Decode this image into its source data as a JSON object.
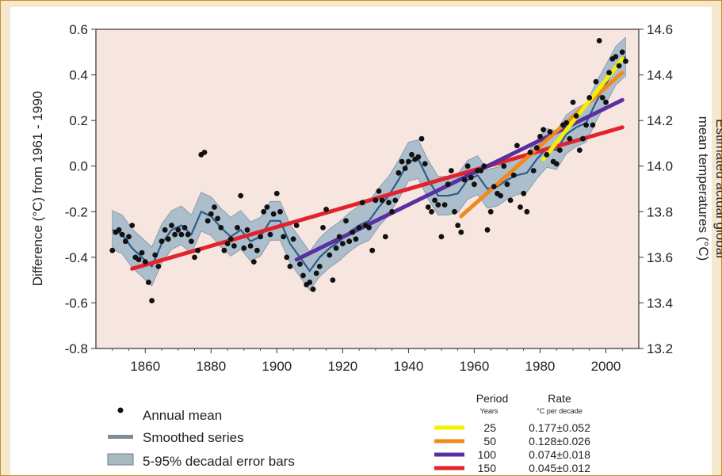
{
  "chart_data": {
    "type": "line",
    "x_range": [
      1845,
      2010
    ],
    "x_ticks": [
      1860,
      1880,
      1900,
      1920,
      1940,
      1960,
      1980,
      2000
    ],
    "y_left": {
      "label": "Difference (°C) from 1961 - 1990",
      "range": [
        -0.8,
        0.6
      ],
      "ticks": [
        -0.8,
        -0.6,
        -0.4,
        -0.2,
        0.0,
        0.2,
        0.4,
        0.6
      ],
      "tick_labels": [
        "-0.8",
        "-0.6",
        "-0.4",
        "-0.2",
        "0.0",
        "0.2",
        "0.4",
        "0.6"
      ]
    },
    "y_right": {
      "label_line1": "Estimated actual global",
      "label_line2": "mean temperatures (°C)",
      "range": [
        13.2,
        14.6
      ],
      "ticks": [
        13.2,
        13.4,
        13.6,
        13.8,
        14.0,
        14.2,
        14.4,
        14.6
      ],
      "tick_labels": [
        "13.2",
        "13.4",
        "13.6",
        "13.8",
        "14.0",
        "14.2",
        "14.4",
        "14.6"
      ]
    },
    "annual_mean": [
      [
        1850,
        -0.37
      ],
      [
        1851,
        -0.29
      ],
      [
        1852,
        -0.28
      ],
      [
        1853,
        -0.3
      ],
      [
        1854,
        -0.33
      ],
      [
        1855,
        -0.31
      ],
      [
        1856,
        -0.26
      ],
      [
        1857,
        -0.4
      ],
      [
        1858,
        -0.41
      ],
      [
        1859,
        -0.38
      ],
      [
        1860,
        -0.42
      ],
      [
        1861,
        -0.51
      ],
      [
        1862,
        -0.59
      ],
      [
        1863,
        -0.39
      ],
      [
        1864,
        -0.44
      ],
      [
        1865,
        -0.33
      ],
      [
        1866,
        -0.28
      ],
      [
        1867,
        -0.32
      ],
      [
        1868,
        -0.26
      ],
      [
        1869,
        -0.3
      ],
      [
        1870,
        -0.28
      ],
      [
        1871,
        -0.3
      ],
      [
        1872,
        -0.27
      ],
      [
        1873,
        -0.3
      ],
      [
        1874,
        -0.33
      ],
      [
        1875,
        -0.4
      ],
      [
        1876,
        -0.37
      ],
      [
        1877,
        0.05
      ],
      [
        1878,
        0.06
      ],
      [
        1879,
        -0.24
      ],
      [
        1880,
        -0.21
      ],
      [
        1881,
        -0.18
      ],
      [
        1882,
        -0.23
      ],
      [
        1883,
        -0.27
      ],
      [
        1884,
        -0.37
      ],
      [
        1885,
        -0.34
      ],
      [
        1886,
        -0.32
      ],
      [
        1887,
        -0.35
      ],
      [
        1888,
        -0.27
      ],
      [
        1889,
        -0.13
      ],
      [
        1890,
        -0.36
      ],
      [
        1891,
        -0.28
      ],
      [
        1892,
        -0.35
      ],
      [
        1893,
        -0.42
      ],
      [
        1894,
        -0.37
      ],
      [
        1895,
        -0.31
      ],
      [
        1896,
        -0.2
      ],
      [
        1897,
        -0.18
      ],
      [
        1898,
        -0.3
      ],
      [
        1899,
        -0.21
      ],
      [
        1900,
        -0.12
      ],
      [
        1901,
        -0.2
      ],
      [
        1902,
        -0.31
      ],
      [
        1903,
        -0.4
      ],
      [
        1904,
        -0.44
      ],
      [
        1905,
        -0.32
      ],
      [
        1906,
        -0.26
      ],
      [
        1907,
        -0.43
      ],
      [
        1908,
        -0.48
      ],
      [
        1909,
        -0.52
      ],
      [
        1910,
        -0.51
      ],
      [
        1911,
        -0.54
      ],
      [
        1912,
        -0.47
      ],
      [
        1913,
        -0.44
      ],
      [
        1914,
        -0.27
      ],
      [
        1915,
        -0.19
      ],
      [
        1916,
        -0.39
      ],
      [
        1917,
        -0.5
      ],
      [
        1918,
        -0.36
      ],
      [
        1919,
        -0.31
      ],
      [
        1920,
        -0.34
      ],
      [
        1921,
        -0.24
      ],
      [
        1922,
        -0.33
      ],
      [
        1923,
        -0.29
      ],
      [
        1924,
        -0.32
      ],
      [
        1925,
        -0.27
      ],
      [
        1926,
        -0.16
      ],
      [
        1927,
        -0.26
      ],
      [
        1928,
        -0.27
      ],
      [
        1929,
        -0.37
      ],
      [
        1930,
        -0.15
      ],
      [
        1931,
        -0.11
      ],
      [
        1932,
        -0.15
      ],
      [
        1933,
        -0.31
      ],
      [
        1934,
        -0.16
      ],
      [
        1935,
        -0.2
      ],
      [
        1936,
        -0.15
      ],
      [
        1937,
        -0.03
      ],
      [
        1938,
        0.02
      ],
      [
        1939,
        -0.01
      ],
      [
        1940,
        0.02
      ],
      [
        1941,
        0.05
      ],
      [
        1942,
        0.03
      ],
      [
        1943,
        0.04
      ],
      [
        1944,
        0.12
      ],
      [
        1945,
        0.01
      ],
      [
        1946,
        -0.18
      ],
      [
        1947,
        -0.2
      ],
      [
        1948,
        -0.15
      ],
      [
        1949,
        -0.17
      ],
      [
        1950,
        -0.31
      ],
      [
        1951,
        -0.17
      ],
      [
        1952,
        -0.08
      ],
      [
        1953,
        -0.02
      ],
      [
        1954,
        -0.2
      ],
      [
        1955,
        -0.26
      ],
      [
        1956,
        -0.29
      ],
      [
        1957,
        -0.06
      ],
      [
        1958,
        0.0
      ],
      [
        1959,
        -0.05
      ],
      [
        1960,
        -0.08
      ],
      [
        1961,
        -0.02
      ],
      [
        1962,
        -0.02
      ],
      [
        1963,
        0.0
      ],
      [
        1964,
        -0.28
      ],
      [
        1965,
        -0.2
      ],
      [
        1966,
        -0.09
      ],
      [
        1967,
        -0.12
      ],
      [
        1968,
        -0.13
      ],
      [
        1969,
        0.0
      ],
      [
        1970,
        -0.08
      ],
      [
        1971,
        -0.15
      ],
      [
        1972,
        -0.04
      ],
      [
        1973,
        0.09
      ],
      [
        1974,
        -0.18
      ],
      [
        1975,
        -0.12
      ],
      [
        1976,
        -0.2
      ],
      [
        1977,
        0.06
      ],
      [
        1978,
        -0.02
      ],
      [
        1979,
        0.08
      ],
      [
        1980,
        0.13
      ],
      [
        1981,
        0.16
      ],
      [
        1982,
        0.05
      ],
      [
        1983,
        0.15
      ],
      [
        1984,
        0.02
      ],
      [
        1985,
        0.01
      ],
      [
        1986,
        0.07
      ],
      [
        1987,
        0.18
      ],
      [
        1988,
        0.19
      ],
      [
        1989,
        0.12
      ],
      [
        1990,
        0.28
      ],
      [
        1991,
        0.22
      ],
      [
        1992,
        0.07
      ],
      [
        1993,
        0.12
      ],
      [
        1994,
        0.18
      ],
      [
        1995,
        0.3
      ],
      [
        1996,
        0.18
      ],
      [
        1997,
        0.37
      ],
      [
        1998,
        0.55
      ],
      [
        1999,
        0.3
      ],
      [
        2000,
        0.28
      ],
      [
        2001,
        0.41
      ],
      [
        2002,
        0.47
      ],
      [
        2003,
        0.48
      ],
      [
        2004,
        0.44
      ],
      [
        2005,
        0.5
      ],
      [
        2006,
        0.46
      ]
    ],
    "smoothed": [
      [
        1850,
        -0.28
      ],
      [
        1853,
        -0.3
      ],
      [
        1856,
        -0.36
      ],
      [
        1859,
        -0.4
      ],
      [
        1862,
        -0.44
      ],
      [
        1865,
        -0.34
      ],
      [
        1868,
        -0.28
      ],
      [
        1871,
        -0.26
      ],
      [
        1874,
        -0.3
      ],
      [
        1877,
        -0.2
      ],
      [
        1880,
        -0.22
      ],
      [
        1883,
        -0.27
      ],
      [
        1886,
        -0.31
      ],
      [
        1889,
        -0.28
      ],
      [
        1892,
        -0.33
      ],
      [
        1895,
        -0.31
      ],
      [
        1898,
        -0.24
      ],
      [
        1901,
        -0.24
      ],
      [
        1904,
        -0.34
      ],
      [
        1907,
        -0.4
      ],
      [
        1910,
        -0.46
      ],
      [
        1913,
        -0.4
      ],
      [
        1916,
        -0.36
      ],
      [
        1919,
        -0.33
      ],
      [
        1922,
        -0.29
      ],
      [
        1925,
        -0.26
      ],
      [
        1928,
        -0.24
      ],
      [
        1931,
        -0.18
      ],
      [
        1934,
        -0.13
      ],
      [
        1937,
        -0.06
      ],
      [
        1940,
        0.02
      ],
      [
        1943,
        0.03
      ],
      [
        1946,
        -0.06
      ],
      [
        1949,
        -0.13
      ],
      [
        1952,
        -0.13
      ],
      [
        1955,
        -0.12
      ],
      [
        1958,
        -0.06
      ],
      [
        1961,
        -0.04
      ],
      [
        1964,
        -0.1
      ],
      [
        1967,
        -0.09
      ],
      [
        1970,
        -0.06
      ],
      [
        1973,
        -0.04
      ],
      [
        1976,
        -0.03
      ],
      [
        1979,
        0.03
      ],
      [
        1982,
        0.08
      ],
      [
        1985,
        0.07
      ],
      [
        1988,
        0.14
      ],
      [
        1991,
        0.17
      ],
      [
        1994,
        0.19
      ],
      [
        1997,
        0.28
      ],
      [
        2000,
        0.36
      ],
      [
        2003,
        0.44
      ],
      [
        2006,
        0.48
      ]
    ],
    "error_band_halfwidth": 0.085,
    "trends": [
      {
        "years": "25",
        "rate": "0.177±0.052",
        "color": "#f4f000",
        "x0": 1981,
        "x1": 2005,
        "y0": 0.03,
        "y1": 0.47
      },
      {
        "years": "50",
        "rate": "0.128±0.026",
        "color": "#f08a1c",
        "x0": 1956,
        "x1": 2005,
        "y0": -0.22,
        "y1": 0.41
      },
      {
        "years": "100",
        "rate": "0.074±0.018",
        "color": "#5a2fa0",
        "x0": 1906,
        "x1": 2005,
        "y0": -0.41,
        "y1": 0.29
      },
      {
        "years": "150",
        "rate": "0.045±0.012",
        "color": "#e2232e",
        "x0": 1856,
        "x1": 2005,
        "y0": -0.45,
        "y1": 0.17
      }
    ],
    "legend": {
      "items": [
        {
          "label": "Annual mean",
          "kind": "dot"
        },
        {
          "label": "Smoothed series",
          "kind": "line"
        },
        {
          "label": "5-95% decadal error bars",
          "kind": "band"
        }
      ],
      "period_header": "Period",
      "period_sub": "Years",
      "rate_header": "Rate",
      "rate_sub": "°C per decade"
    },
    "colors": {
      "plot_background": "#f7e6df",
      "band": "#9fb6c9",
      "smoothed": "#2d5d87",
      "dot": "#111111"
    }
  }
}
